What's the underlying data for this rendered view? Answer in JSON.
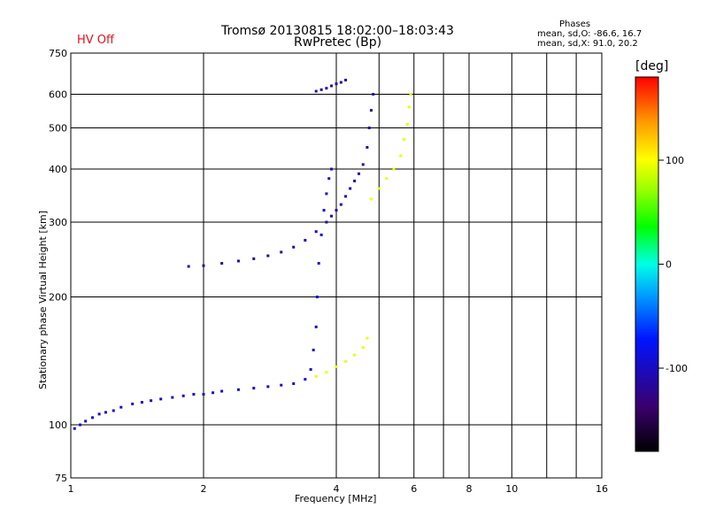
{
  "header": {
    "title_line1": "Tromsø 20130815 18:02:00–18:03:43",
    "title_line2": "RwPretec (Bp)",
    "status": "HV Off"
  },
  "phases_box": {
    "title": "Phases",
    "o_line": "mean, sd,O: -86.6, 16.7",
    "x_line": "mean, sd,X:  91.0, 20.2"
  },
  "chart_data": {
    "type": "scatter",
    "xlabel": "Frequency [MHz]",
    "ylabel": "Stationary phase Virtual Height [km]",
    "x_scale": "log",
    "y_scale": "log",
    "xlim": [
      1,
      16
    ],
    "ylim": [
      75,
      750
    ],
    "x_ticks": [
      1,
      2,
      4,
      6,
      8,
      10,
      16
    ],
    "x_gridlines": [
      1,
      2,
      4,
      5,
      6,
      7,
      8,
      10,
      12,
      14,
      16
    ],
    "y_ticks": [
      75,
      100,
      200,
      300,
      400,
      500,
      600,
      750
    ],
    "grid": true,
    "colorbar": {
      "label": "[deg]",
      "range": [
        -180,
        180
      ],
      "ticks": [
        100,
        0,
        -100
      ]
    },
    "series": [
      {
        "trace": "O-mode lower",
        "color_value": -95,
        "points": [
          [
            1.02,
            98
          ],
          [
            1.05,
            100
          ],
          [
            1.08,
            102
          ],
          [
            1.12,
            104
          ],
          [
            1.16,
            106
          ],
          [
            1.2,
            107
          ],
          [
            1.25,
            108
          ],
          [
            1.3,
            110
          ],
          [
            1.38,
            112
          ],
          [
            1.45,
            113
          ],
          [
            1.52,
            114
          ],
          [
            1.6,
            115
          ],
          [
            1.7,
            116
          ],
          [
            1.8,
            117
          ],
          [
            1.9,
            118
          ],
          [
            2.0,
            118
          ],
          [
            2.1,
            119
          ],
          [
            2.2,
            120
          ],
          [
            2.4,
            121
          ],
          [
            2.6,
            122
          ],
          [
            2.8,
            123
          ],
          [
            3.0,
            124
          ],
          [
            3.2,
            125
          ],
          [
            3.4,
            128
          ],
          [
            3.5,
            135
          ],
          [
            3.55,
            150
          ],
          [
            3.6,
            170
          ],
          [
            3.62,
            200
          ],
          [
            3.65,
            240
          ],
          [
            3.7,
            280
          ],
          [
            3.75,
            320
          ],
          [
            3.8,
            350
          ],
          [
            3.85,
            380
          ],
          [
            3.9,
            400
          ]
        ]
      },
      {
        "trace": "O-mode F2",
        "color_value": -110,
        "points": [
          [
            1.85,
            236
          ],
          [
            2.0,
            237
          ],
          [
            2.2,
            240
          ],
          [
            2.4,
            243
          ],
          [
            2.6,
            246
          ],
          [
            2.8,
            250
          ],
          [
            3.0,
            255
          ],
          [
            3.2,
            262
          ],
          [
            3.4,
            272
          ],
          [
            3.6,
            285
          ],
          [
            3.8,
            300
          ],
          [
            3.9,
            310
          ],
          [
            4.0,
            320
          ],
          [
            4.1,
            330
          ],
          [
            4.2,
            345
          ],
          [
            4.3,
            360
          ],
          [
            4.4,
            375
          ],
          [
            4.5,
            390
          ],
          [
            4.6,
            410
          ],
          [
            4.7,
            450
          ],
          [
            4.75,
            500
          ],
          [
            4.8,
            550
          ],
          [
            4.85,
            600
          ]
        ]
      },
      {
        "trace": "O-mode high",
        "color_value": -115,
        "points": [
          [
            3.6,
            610
          ],
          [
            3.7,
            615
          ],
          [
            3.8,
            620
          ],
          [
            3.9,
            628
          ],
          [
            4.0,
            635
          ],
          [
            4.1,
            640
          ],
          [
            4.2,
            648
          ]
        ]
      },
      {
        "trace": "X-mode",
        "color_value": 95,
        "points": [
          [
            3.6,
            130
          ],
          [
            3.8,
            133
          ],
          [
            4.0,
            137
          ],
          [
            4.2,
            141
          ],
          [
            4.4,
            146
          ],
          [
            4.6,
            152
          ],
          [
            4.7,
            160
          ],
          [
            4.8,
            340
          ],
          [
            5.0,
            360
          ],
          [
            5.2,
            380
          ],
          [
            5.4,
            400
          ],
          [
            5.6,
            430
          ],
          [
            5.7,
            470
          ],
          [
            5.8,
            510
          ],
          [
            5.85,
            560
          ],
          [
            5.9,
            600
          ]
        ]
      }
    ]
  }
}
